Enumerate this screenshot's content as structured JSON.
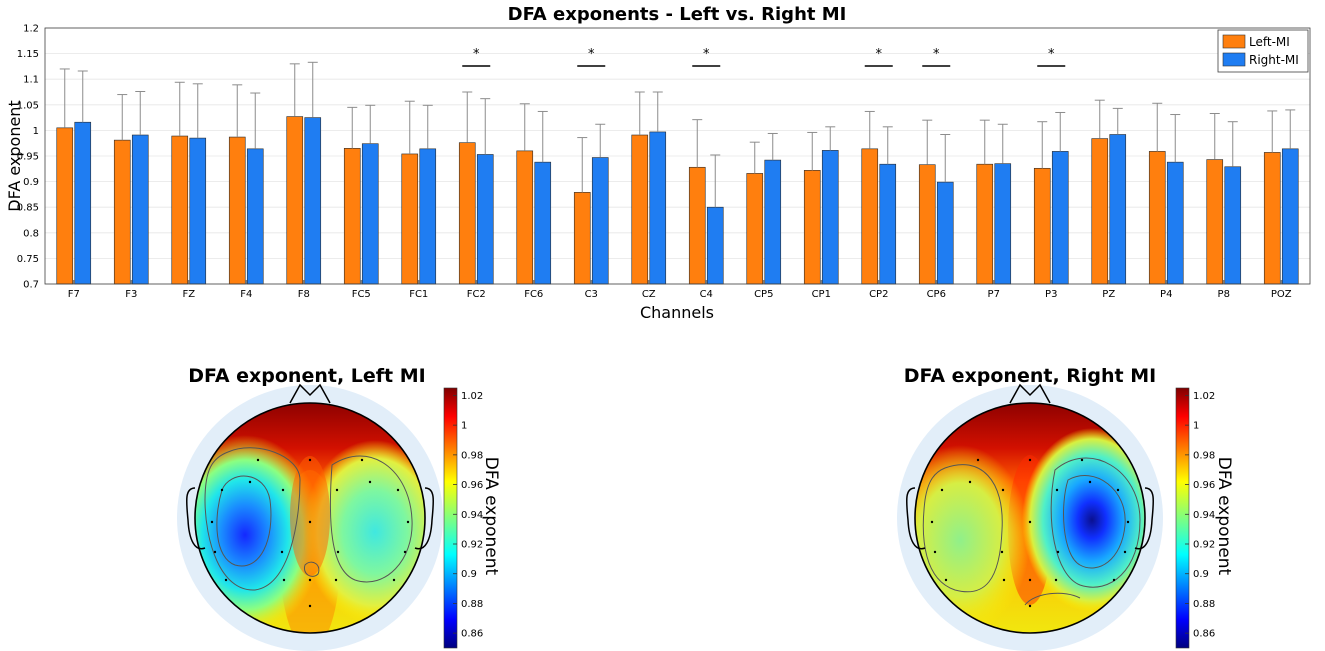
{
  "chart_data": [
    {
      "type": "bar",
      "title": "DFA exponents - Left vs. Right MI",
      "xlabel": "Channels",
      "ylabel": "DFA exponent",
      "ylim": [
        0.7,
        1.2
      ],
      "yticks": [
        "0.7",
        "0.75",
        "0.8",
        "0.85",
        "0.9",
        "0.95",
        "1",
        "1.05",
        "1.1",
        "1.15",
        "1.2"
      ],
      "categories": [
        "F7",
        "F3",
        "FZ",
        "F4",
        "F8",
        "FC5",
        "FC1",
        "FC2",
        "FC6",
        "C3",
        "CZ",
        "C4",
        "CP5",
        "CP1",
        "CP2",
        "CP6",
        "P7",
        "P3",
        "PZ",
        "P4",
        "P8",
        "POZ"
      ],
      "series": [
        {
          "name": "Left-MI",
          "color": "#ff7f0e",
          "values": [
            1.005,
            0.981,
            0.989,
            0.987,
            1.027,
            0.965,
            0.954,
            0.976,
            0.96,
            0.879,
            0.991,
            0.928,
            0.916,
            0.922,
            0.964,
            0.933,
            0.934,
            0.926,
            0.984,
            0.959,
            0.943,
            0.957
          ],
          "error_upper": [
            1.12,
            1.07,
            1.094,
            1.089,
            1.13,
            1.045,
            1.057,
            1.075,
            1.052,
            0.986,
            1.075,
            1.021,
            0.977,
            0.996,
            1.037,
            1.02,
            1.02,
            1.017,
            1.059,
            1.053,
            1.033,
            1.038
          ]
        },
        {
          "name": "Right-MI",
          "color": "#1f7df2",
          "values": [
            1.016,
            0.991,
            0.985,
            0.964,
            1.025,
            0.974,
            0.964,
            0.953,
            0.938,
            0.947,
            0.997,
            0.85,
            0.942,
            0.961,
            0.934,
            0.899,
            0.935,
            0.959,
            0.992,
            0.938,
            0.929,
            0.964
          ],
          "error_upper": [
            1.116,
            1.076,
            1.091,
            1.073,
            1.133,
            1.049,
            1.049,
            1.062,
            1.037,
            1.012,
            1.075,
            0.952,
            0.994,
            1.007,
            1.007,
            0.992,
            1.012,
            1.035,
            1.043,
            1.031,
            1.017,
            1.04
          ]
        }
      ],
      "significance_marker": "*",
      "significant_channels": [
        "FC2",
        "C3",
        "C4",
        "CP2",
        "CP6",
        "P3"
      ],
      "legend_position": "top-right"
    },
    {
      "type": "heatmap",
      "subtype": "topographic-map",
      "title": "DFA exponent, Left MI",
      "colorbar_label": "DFA exponent",
      "colorbar_range": [
        0.85,
        1.025
      ],
      "colorbar_ticks": [
        "0.86",
        "0.88",
        "0.9",
        "0.92",
        "0.94",
        "0.96",
        "0.98",
        "1",
        "1.02"
      ],
      "colormap": "jet",
      "minimum_region": "left-central",
      "maximum_region": "frontal"
    },
    {
      "type": "heatmap",
      "subtype": "topographic-map",
      "title": "DFA exponent, Right MI",
      "colorbar_label": "DFA exponent",
      "colorbar_range": [
        0.85,
        1.025
      ],
      "colorbar_ticks": [
        "0.86",
        "0.88",
        "0.9",
        "0.92",
        "0.94",
        "0.96",
        "0.98",
        "1",
        "1.02"
      ],
      "colormap": "jet",
      "minimum_region": "right-central",
      "maximum_region": "frontal"
    }
  ]
}
